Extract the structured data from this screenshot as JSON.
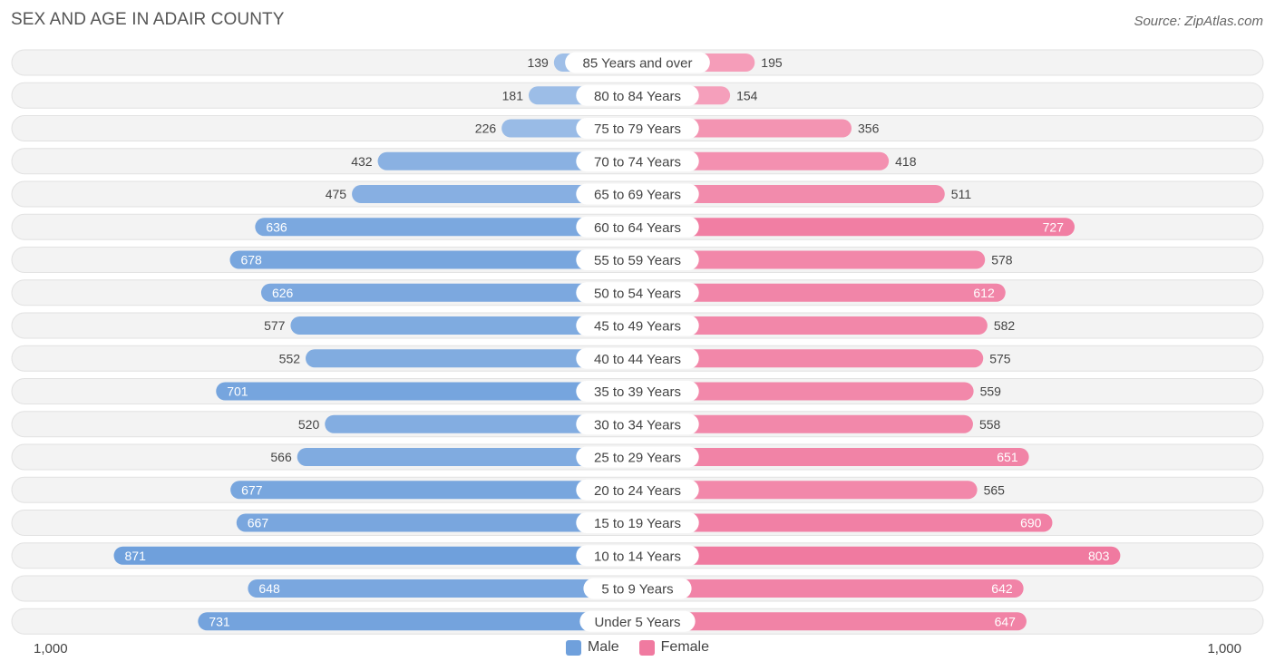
{
  "title": "SEX AND AGE IN ADAIR COUNTY",
  "source": "Source: ZipAtlas.com",
  "colors": {
    "male": "#6fa0dc",
    "female": "#f07aa0",
    "male_light": "#a9c6ea",
    "female_light": "#f6a8c1"
  },
  "chart_data": {
    "type": "bar",
    "orientation": "horizontal-diverging",
    "title": "SEX AND AGE IN ADAIR COUNTY",
    "categories": [
      "85 Years and over",
      "80 to 84 Years",
      "75 to 79 Years",
      "70 to 74 Years",
      "65 to 69 Years",
      "60 to 64 Years",
      "55 to 59 Years",
      "50 to 54 Years",
      "45 to 49 Years",
      "40 to 44 Years",
      "35 to 39 Years",
      "30 to 34 Years",
      "25 to 29 Years",
      "20 to 24 Years",
      "15 to 19 Years",
      "10 to 14 Years",
      "5 to 9 Years",
      "Under 5 Years"
    ],
    "series": [
      {
        "name": "Male",
        "values": [
          139,
          181,
          226,
          432,
          475,
          636,
          678,
          626,
          577,
          552,
          701,
          520,
          566,
          677,
          667,
          871,
          648,
          731
        ]
      },
      {
        "name": "Female",
        "values": [
          195,
          154,
          356,
          418,
          511,
          727,
          578,
          612,
          582,
          575,
          559,
          558,
          651,
          565,
          690,
          803,
          642,
          647
        ]
      }
    ],
    "xlim": [
      -1000,
      1000
    ],
    "axis_left_label": "1,000",
    "axis_right_label": "1,000",
    "legend": [
      "Male",
      "Female"
    ],
    "legend_position": "bottom-center"
  }
}
